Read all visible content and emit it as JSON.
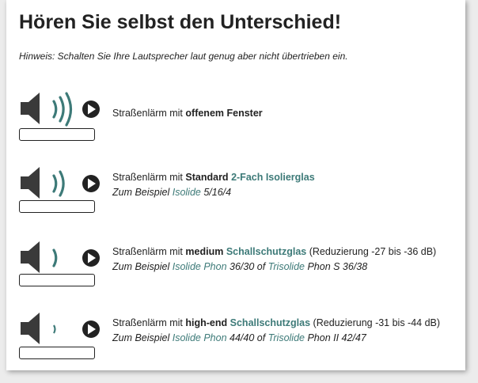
{
  "title": "Hören Sie selbst den Unterschied!",
  "hint": "Hinweis: Schalten Sie Ihre Lautsprecher laut genug aber nicht übertrieben ein.",
  "accent": "#3d7a78",
  "rows": [
    {
      "waves": 3,
      "prefix": "Straßenlärm mit ",
      "bold": "offenem Fenster",
      "teal": "",
      "suffix": ""
    },
    {
      "waves": 2,
      "prefix": "Straßenlärm mit ",
      "bold": "Standard",
      "teal": "2-Fach Isolierglas",
      "suffix": "",
      "ex": {
        "a": "Zum Beispiel ",
        "l1": "Isolide",
        "b": " 5/16/4",
        "of": "",
        "l2": "",
        "c": ""
      }
    },
    {
      "waves": 1,
      "prefix": "Straßenlärm mit ",
      "bold": "medium",
      "teal": "Schallschutzglas",
      "suffix": " (Reduzierung -27 bis -36 dB)",
      "ex": {
        "a": "Zum Beispiel ",
        "l1": "Isolide Phon",
        "b": " 36/30 of ",
        "l2": "Trisolide",
        "c": " Phon S 36/38"
      }
    },
    {
      "waves": 0.5,
      "prefix": "Straßenlärm mit ",
      "bold": "high-end",
      "teal": "Schallschutzglas",
      "suffix": " (Reduzierung -31 bis -44 dB)",
      "ex": {
        "a": "Zum Beispiel ",
        "l1": "Isolide Phon",
        "b": " 44/40 of ",
        "l2": "Trisolide",
        "c": " Phon II 42/47"
      }
    }
  ]
}
